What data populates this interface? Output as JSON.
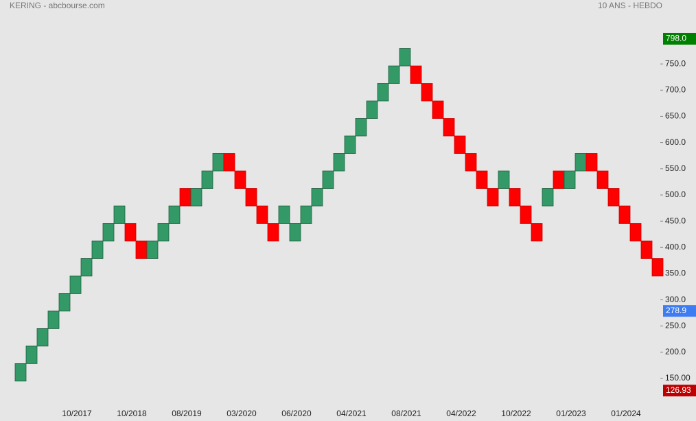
{
  "chart_data": {
    "type": "renko",
    "title": "KERING - abcbourse.com",
    "subtitle": "10 ANS - HEBDO",
    "up_color": "#339966",
    "down_color": "#ff0000",
    "categories": [
      null,
      null,
      null,
      null,
      null,
      "10/2017",
      null,
      null,
      null,
      null,
      "10/2018",
      null,
      null,
      null,
      null,
      "08/2019",
      null,
      null,
      null,
      null,
      "03/2020",
      null,
      null,
      null,
      null,
      "06/2020",
      null,
      null,
      null,
      null,
      "04/2021",
      null,
      null,
      null,
      null,
      "08/2021",
      null,
      null,
      null,
      null,
      "04/2022",
      null,
      null,
      null,
      null,
      "10/2022",
      null,
      null,
      null,
      null,
      "01/2023",
      null,
      null,
      null,
      null,
      "01/2024",
      null,
      null,
      null
    ],
    "open": [
      145,
      178.4,
      211.8,
      245.2,
      278.6,
      312,
      345.4,
      378.8,
      412.2,
      445.6,
      445.6,
      412.2,
      378.8,
      412.2,
      445.6,
      512.4,
      479,
      512.4,
      545.8,
      579.2,
      545.8,
      512.4,
      479,
      445.6,
      445.6,
      412.2,
      445.6,
      479,
      512.4,
      545.8,
      579.2,
      612.6,
      646,
      679.4,
      712.8,
      746.2,
      746.2,
      712.8,
      679.4,
      646,
      612.6,
      579.2,
      545.8,
      512.4,
      512.4,
      512.4,
      479,
      445.6,
      479,
      545.8,
      512.4,
      545.8,
      579.2,
      545.8,
      512.4,
      479,
      445.6,
      412.2,
      378.8
    ],
    "close": [
      178.4,
      211.8,
      245.2,
      278.6,
      312,
      345.4,
      378.8,
      412.2,
      445.6,
      479,
      412.2,
      378.8,
      412.2,
      445.6,
      479,
      479,
      512.4,
      545.8,
      579.2,
      545.8,
      512.4,
      479,
      445.6,
      412.2,
      479,
      445.6,
      479,
      512.4,
      545.8,
      579.2,
      612.6,
      646,
      679.4,
      712.8,
      746.2,
      779.6,
      712.8,
      679.4,
      646,
      612.6,
      579.2,
      545.8,
      512.4,
      479,
      545.8,
      479,
      445.6,
      412.2,
      512.4,
      512.4,
      545.8,
      579.2,
      545.8,
      512.4,
      479,
      445.6,
      412.2,
      378.8,
      345.4
    ],
    "ylim": [
      99,
      872
    ],
    "yticks": [
      {
        "value": 150,
        "label": "150.00"
      },
      {
        "value": 200,
        "label": "200.0"
      },
      {
        "value": 250,
        "label": "250.0"
      },
      {
        "value": 300,
        "label": "300.0"
      },
      {
        "value": 350,
        "label": "350.0"
      },
      {
        "value": 400,
        "label": "400.0"
      },
      {
        "value": 450,
        "label": "450.0"
      },
      {
        "value": 500,
        "label": "500.0"
      },
      {
        "value": 550,
        "label": "550.0"
      },
      {
        "value": 600,
        "label": "600.0"
      },
      {
        "value": 650,
        "label": "650.0"
      },
      {
        "value": 700,
        "label": "700.0"
      },
      {
        "value": 750,
        "label": "750.0"
      }
    ],
    "price_labels": [
      {
        "value": 798,
        "label": "798.0",
        "color": "#008000"
      },
      {
        "value": 278.9,
        "label": "278.9",
        "color": "#3d7cf2"
      },
      {
        "value": 126.93,
        "label": "126.93",
        "color": "#c00000"
      }
    ]
  }
}
